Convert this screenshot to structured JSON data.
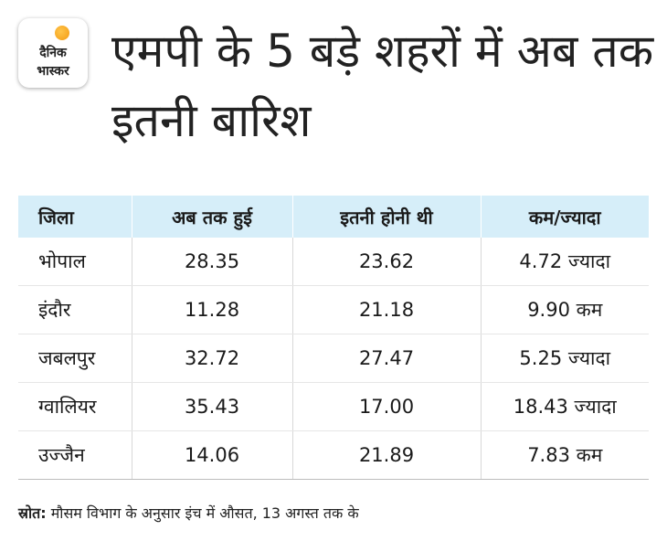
{
  "logo": {
    "line1": "दैनिक",
    "line2": "भास्कर"
  },
  "title": "एमपी के 5 बड़े शहरों में अब तक इतनी बारिश",
  "table": {
    "headers": [
      "जिला",
      "अब तक हुई",
      "इतनी होनी थी",
      "कम/ज्यादा"
    ],
    "rows": [
      [
        "भोपाल",
        "28.35",
        "23.62",
        "4.72 ज्यादा"
      ],
      [
        "इंदौर",
        "11.28",
        "21.18",
        "9.90 कम"
      ],
      [
        "जबलपुर",
        "32.72",
        "27.47",
        "5.25  ज्यादा"
      ],
      [
        "ग्वालियर",
        "35.43",
        "17.00",
        "18.43  ज्यादा"
      ],
      [
        "उज्जैन",
        "14.06",
        "21.89",
        "7.83 कम"
      ]
    ]
  },
  "source": {
    "label": "स्रोत:",
    "text": " मौसम विभाग के अनुसार इंच में औसत, 13 अगस्त तक के"
  }
}
